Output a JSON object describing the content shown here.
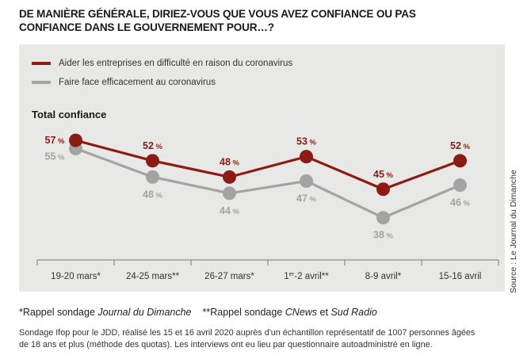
{
  "title": "DE MANIÈRE GÉNÉRALE, DIRIEZ-VOUS QUE VOUS AVEZ CONFIANCE OU PAS CONFIANCE DANS LE GOUVERNEMENT POUR…?",
  "colors": {
    "series1": "#8c1c13",
    "series2": "#a3a3a3",
    "panel": "#e8e8e6"
  },
  "chart_data": {
    "type": "line",
    "subtitle": "Total confiance",
    "categories": [
      "19-20 mars*",
      "24-25 mars**",
      "26-27 mars*",
      "1er-2 avril**",
      "8-9 avril*",
      "15-16 avril"
    ],
    "series": [
      {
        "name": "Aider les entreprises en difficulté en raison du coronavirus",
        "values": [
          57,
          52,
          48,
          53,
          45,
          52
        ],
        "color": "#8c1c13"
      },
      {
        "name": "Faire face efficacement au coronavirus",
        "values": [
          55,
          48,
          44,
          47,
          38,
          46
        ],
        "color": "#a3a3a3"
      }
    ],
    "value_suffix": "%",
    "legend": "top-left",
    "grid": false
  },
  "source": "Source : Le Journal du Dimanche",
  "footnotes": {
    "n1_prefix": "*Rappel sondage ",
    "n1_italic": "Journal du Dimanche",
    "n2_prefix": "**Rappel sondage ",
    "n2_italic1": "CNews",
    "n2_mid": " et ",
    "n2_italic2": "Sud Radio"
  },
  "methodology": "Sondage Ifop pour le JDD, réalisé les 15 et 16 avril 2020 auprès d'un échantillon représentatif de 1007 personnes âgées de 18 ans et plus (méthode des quotas). Les interviews ont eu lieu par questionnaire autoadministré en ligne."
}
